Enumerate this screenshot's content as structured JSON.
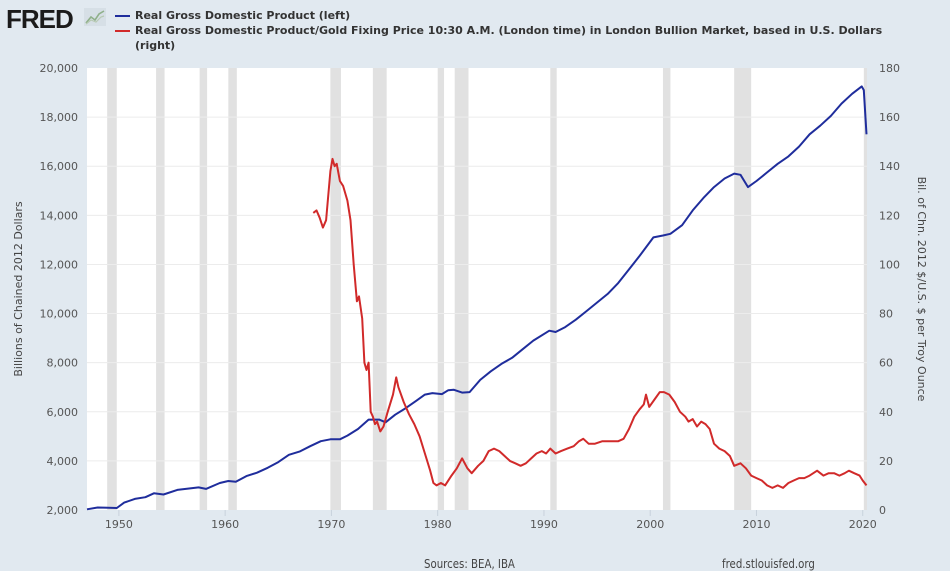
{
  "header": {
    "logo_text": "FRED",
    "logo_icon": "line-chart-icon"
  },
  "legend": [
    {
      "label": "Real Gross Domestic Product (left)",
      "color": "#1f2d9c"
    },
    {
      "label": "Real Gross Domestic Product/Gold Fixing Price 10:30 A.M. (London time) in London Bullion Market, based in U.S. Dollars",
      "label_cont": "(right)",
      "color": "#d12a2a"
    }
  ],
  "footer": {
    "sources": "Sources: BEA, IBA",
    "site": "fred.stlouisfed.org"
  },
  "chart_data": {
    "type": "line",
    "title": "",
    "xlabel": "",
    "ylabel": "Billions of Chained 2012 Dollars",
    "y2label": "Bil. of Chn. 2012 $/U.S. $ per Troy Ounce",
    "xlim": [
      1947,
      2020.4
    ],
    "ylim": [
      2000,
      20000
    ],
    "y2lim": [
      0,
      180
    ],
    "x_ticks": [
      "1950",
      "1960",
      "1970",
      "1980",
      "1990",
      "2000",
      "2010",
      "2020"
    ],
    "y_ticks": [
      "2,000",
      "4,000",
      "6,000",
      "8,000",
      "10,000",
      "12,000",
      "14,000",
      "16,000",
      "18,000",
      "20,000"
    ],
    "y2_ticks": [
      "0",
      "20",
      "40",
      "60",
      "80",
      "100",
      "120",
      "140",
      "160",
      "180"
    ],
    "grid": true,
    "legend_position": "top",
    "recessions": [
      [
        1948.9,
        1949.8
      ],
      [
        1953.5,
        1954.3
      ],
      [
        1957.6,
        1958.3
      ],
      [
        1960.3,
        1961.1
      ],
      [
        1969.9,
        1970.9
      ],
      [
        1973.9,
        1975.2
      ],
      [
        1980.0,
        1980.6
      ],
      [
        1981.6,
        1982.9
      ],
      [
        1990.6,
        1991.2
      ],
      [
        2001.2,
        2001.9
      ],
      [
        2007.9,
        2009.5
      ],
      [
        2020.1,
        2020.4
      ]
    ],
    "series": [
      {
        "name": "Real Gross Domestic Product (left)",
        "axis": "left",
        "color": "#1f2d9c",
        "points": [
          [
            1947,
            2030
          ],
          [
            1948,
            2100
          ],
          [
            1949,
            2090
          ],
          [
            1949.8,
            2080
          ],
          [
            1950.5,
            2300
          ],
          [
            1951.5,
            2450
          ],
          [
            1952.5,
            2520
          ],
          [
            1953.3,
            2680
          ],
          [
            1954.2,
            2630
          ],
          [
            1955.5,
            2820
          ],
          [
            1956.5,
            2870
          ],
          [
            1957.5,
            2920
          ],
          [
            1958.2,
            2860
          ],
          [
            1959.5,
            3100
          ],
          [
            1960.3,
            3180
          ],
          [
            1961,
            3150
          ],
          [
            1962,
            3380
          ],
          [
            1963,
            3520
          ],
          [
            1964,
            3720
          ],
          [
            1965,
            3950
          ],
          [
            1966,
            4250
          ],
          [
            1967,
            4380
          ],
          [
            1968,
            4600
          ],
          [
            1969,
            4800
          ],
          [
            1969.9,
            4880
          ],
          [
            1970.8,
            4880
          ],
          [
            1971.5,
            5030
          ],
          [
            1972.5,
            5300
          ],
          [
            1973.5,
            5680
          ],
          [
            1974.5,
            5680
          ],
          [
            1975.1,
            5570
          ],
          [
            1976,
            5880
          ],
          [
            1977,
            6150
          ],
          [
            1978,
            6450
          ],
          [
            1978.8,
            6700
          ],
          [
            1979.5,
            6760
          ],
          [
            1980.4,
            6720
          ],
          [
            1981,
            6880
          ],
          [
            1981.5,
            6900
          ],
          [
            1982.3,
            6780
          ],
          [
            1983,
            6800
          ],
          [
            1984,
            7300
          ],
          [
            1985,
            7650
          ],
          [
            1986,
            7950
          ],
          [
            1987,
            8200
          ],
          [
            1988,
            8550
          ],
          [
            1989,
            8900
          ],
          [
            1990.5,
            9300
          ],
          [
            1991.1,
            9250
          ],
          [
            1992,
            9450
          ],
          [
            1993,
            9750
          ],
          [
            1994,
            10100
          ],
          [
            1995,
            10450
          ],
          [
            1996,
            10800
          ],
          [
            1997,
            11250
          ],
          [
            1998,
            11800
          ],
          [
            1999,
            12350
          ],
          [
            2000.3,
            13100
          ],
          [
            2001.2,
            13180
          ],
          [
            2001.9,
            13250
          ],
          [
            2003,
            13600
          ],
          [
            2004,
            14200
          ],
          [
            2005,
            14700
          ],
          [
            2006,
            15150
          ],
          [
            2007,
            15500
          ],
          [
            2007.9,
            15700
          ],
          [
            2008.5,
            15650
          ],
          [
            2009.2,
            15150
          ],
          [
            2010,
            15400
          ],
          [
            2011,
            15750
          ],
          [
            2012,
            16100
          ],
          [
            2013,
            16400
          ],
          [
            2014,
            16800
          ],
          [
            2015,
            17300
          ],
          [
            2016,
            17650
          ],
          [
            2017,
            18050
          ],
          [
            2018,
            18550
          ],
          [
            2019,
            18950
          ],
          [
            2019.9,
            19250
          ],
          [
            2020.1,
            19100
          ],
          [
            2020.35,
            17300
          ]
        ]
      },
      {
        "name": "Real Gross Domestic Product/Gold Fixing Price 10:30 A.M. (London time) in London Bullion Market, based in U.S. Dollars (right)",
        "axis": "right",
        "color": "#d12a2a",
        "points": [
          [
            1968.3,
            121
          ],
          [
            1968.6,
            122
          ],
          [
            1968.9,
            119
          ],
          [
            1969.2,
            115
          ],
          [
            1969.5,
            118
          ],
          [
            1969.9,
            138
          ],
          [
            1970.1,
            143
          ],
          [
            1970.3,
            140
          ],
          [
            1970.5,
            141
          ],
          [
            1970.8,
            134
          ],
          [
            1971.1,
            132
          ],
          [
            1971.5,
            126
          ],
          [
            1971.8,
            118
          ],
          [
            1972.1,
            100
          ],
          [
            1972.4,
            85
          ],
          [
            1972.6,
            87
          ],
          [
            1972.9,
            78
          ],
          [
            1973.1,
            60
          ],
          [
            1973.3,
            57
          ],
          [
            1973.5,
            60
          ],
          [
            1973.7,
            40
          ],
          [
            1973.9,
            38
          ],
          [
            1974.1,
            35
          ],
          [
            1974.3,
            36
          ],
          [
            1974.6,
            32
          ],
          [
            1974.9,
            34
          ],
          [
            1975.3,
            40
          ],
          [
            1975.8,
            47
          ],
          [
            1976.1,
            54
          ],
          [
            1976.3,
            50
          ],
          [
            1976.8,
            44
          ],
          [
            1977.3,
            39
          ],
          [
            1977.8,
            35
          ],
          [
            1978.3,
            30
          ],
          [
            1978.8,
            23
          ],
          [
            1979.3,
            16
          ],
          [
            1979.6,
            11
          ],
          [
            1979.9,
            10
          ],
          [
            1980.3,
            11
          ],
          [
            1980.7,
            10
          ],
          [
            1981.3,
            14
          ],
          [
            1981.8,
            17
          ],
          [
            1982.3,
            21
          ],
          [
            1982.8,
            17
          ],
          [
            1983.2,
            15
          ],
          [
            1983.8,
            18
          ],
          [
            1984.3,
            20
          ],
          [
            1984.8,
            24
          ],
          [
            1985.3,
            25
          ],
          [
            1985.8,
            24
          ],
          [
            1986.3,
            22
          ],
          [
            1986.8,
            20
          ],
          [
            1987.3,
            19
          ],
          [
            1987.8,
            18
          ],
          [
            1988.3,
            19
          ],
          [
            1988.8,
            21
          ],
          [
            1989.3,
            23
          ],
          [
            1989.8,
            24
          ],
          [
            1990.2,
            23
          ],
          [
            1990.6,
            25
          ],
          [
            1991.1,
            23
          ],
          [
            1991.6,
            24
          ],
          [
            1992.2,
            25
          ],
          [
            1992.8,
            26
          ],
          [
            1993.3,
            28
          ],
          [
            1993.7,
            29
          ],
          [
            1994.2,
            27
          ],
          [
            1994.8,
            27
          ],
          [
            1995.5,
            28
          ],
          [
            1996.3,
            28
          ],
          [
            1997,
            28
          ],
          [
            1997.5,
            29
          ],
          [
            1998,
            33
          ],
          [
            1998.5,
            38
          ],
          [
            1999,
            41
          ],
          [
            1999.4,
            43
          ],
          [
            1999.6,
            47
          ],
          [
            1999.9,
            42
          ],
          [
            2000.4,
            45
          ],
          [
            2000.9,
            48
          ],
          [
            2001.3,
            48
          ],
          [
            2001.8,
            47
          ],
          [
            2002.3,
            44
          ],
          [
            2002.8,
            40
          ],
          [
            2003.3,
            38
          ],
          [
            2003.6,
            36
          ],
          [
            2004,
            37
          ],
          [
            2004.4,
            34
          ],
          [
            2004.8,
            36
          ],
          [
            2005.2,
            35
          ],
          [
            2005.6,
            33
          ],
          [
            2006,
            27
          ],
          [
            2006.5,
            25
          ],
          [
            2007,
            24
          ],
          [
            2007.5,
            22
          ],
          [
            2007.9,
            18
          ],
          [
            2008.5,
            19
          ],
          [
            2009,
            17
          ],
          [
            2009.5,
            14
          ],
          [
            2010,
            13
          ],
          [
            2010.5,
            12
          ],
          [
            2011,
            10
          ],
          [
            2011.5,
            9
          ],
          [
            2012,
            10
          ],
          [
            2012.5,
            9
          ],
          [
            2013,
            11
          ],
          [
            2013.5,
            12
          ],
          [
            2014,
            13
          ],
          [
            2014.5,
            13
          ],
          [
            2015,
            14
          ],
          [
            2015.7,
            16
          ],
          [
            2016.3,
            14
          ],
          [
            2016.8,
            15
          ],
          [
            2017.3,
            15
          ],
          [
            2017.8,
            14
          ],
          [
            2018.3,
            15
          ],
          [
            2018.7,
            16
          ],
          [
            2019.2,
            15
          ],
          [
            2019.7,
            14
          ],
          [
            2020,
            12
          ],
          [
            2020.35,
            10
          ]
        ]
      }
    ]
  }
}
